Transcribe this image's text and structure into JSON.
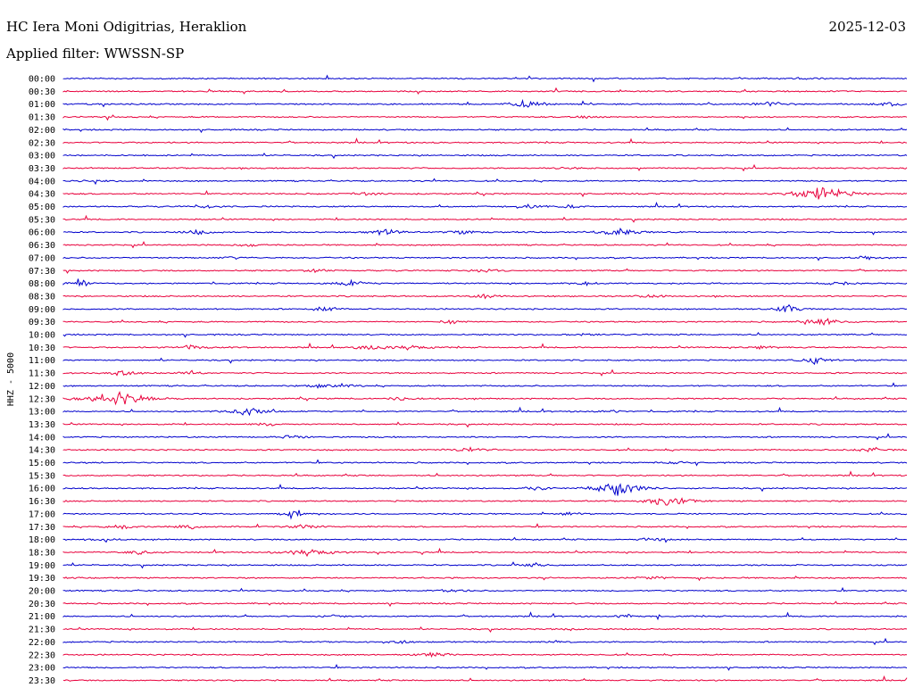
{
  "header": {
    "station": "HC Iera Moni Odigitrias, Heraklion",
    "filter": "Applied filter: WWSSN-SP",
    "date": "2025-12-03"
  },
  "colors": {
    "trace_a": "#0000cc",
    "trace_b": "#e8003c"
  },
  "chart_data": {
    "type": "line",
    "ylabel": "HHZ - 5000",
    "rows": [
      {
        "label": "00:00",
        "events": [
          [
            0.88,
            0.3
          ]
        ]
      },
      {
        "label": "00:30",
        "events": []
      },
      {
        "label": "01:00",
        "events": [
          [
            0.55,
            1.2
          ],
          [
            0.84,
            0.9
          ],
          [
            0.98,
            0.6
          ]
        ]
      },
      {
        "label": "01:30",
        "events": [
          [
            0.62,
            0.4
          ]
        ]
      },
      {
        "label": "02:00",
        "events": []
      },
      {
        "label": "02:30",
        "events": []
      },
      {
        "label": "03:00",
        "events": []
      },
      {
        "label": "03:30",
        "events": [
          [
            0.6,
            0.5
          ]
        ]
      },
      {
        "label": "04:00",
        "events": [
          [
            0.04,
            0.5
          ]
        ]
      },
      {
        "label": "04:30",
        "events": [
          [
            0.36,
            0.6
          ],
          [
            0.9,
            2.4
          ]
        ]
      },
      {
        "label": "05:00",
        "events": [
          [
            0.17,
            0.4
          ],
          [
            0.55,
            0.8
          ],
          [
            0.6,
            0.6
          ]
        ]
      },
      {
        "label": "05:30",
        "events": []
      },
      {
        "label": "06:00",
        "events": [
          [
            0.16,
            0.8
          ],
          [
            0.38,
            1.0
          ],
          [
            0.47,
            0.8
          ],
          [
            0.66,
            1.4
          ]
        ]
      },
      {
        "label": "06:30",
        "events": [
          [
            0.22,
            0.7
          ]
        ]
      },
      {
        "label": "07:00",
        "events": [
          [
            0.2,
            0.4
          ],
          [
            0.95,
            0.5
          ]
        ]
      },
      {
        "label": "07:30",
        "events": [
          [
            0.3,
            0.5
          ],
          [
            0.5,
            0.6
          ]
        ]
      },
      {
        "label": "08:00",
        "events": [
          [
            0.02,
            0.8
          ],
          [
            0.34,
            1.0
          ],
          [
            0.62,
            0.6
          ],
          [
            0.92,
            0.5
          ]
        ]
      },
      {
        "label": "08:30",
        "events": [
          [
            0.5,
            0.6
          ],
          [
            0.7,
            0.6
          ]
        ]
      },
      {
        "label": "09:00",
        "events": [
          [
            0.31,
            0.8
          ],
          [
            0.86,
            0.9
          ]
        ]
      },
      {
        "label": "09:30",
        "events": [
          [
            0.46,
            0.5
          ],
          [
            0.9,
            1.4
          ]
        ]
      },
      {
        "label": "10:00",
        "events": [
          [
            0.62,
            0.4
          ]
        ]
      },
      {
        "label": "10:30",
        "events": [
          [
            0.15,
            0.8
          ],
          [
            0.36,
            1.0
          ],
          [
            0.41,
            1.1
          ],
          [
            0.83,
            0.5
          ]
        ]
      },
      {
        "label": "11:00",
        "events": [
          [
            0.89,
            1.0
          ]
        ]
      },
      {
        "label": "11:30",
        "events": [
          [
            0.07,
            0.8
          ],
          [
            0.15,
            0.5
          ]
        ]
      },
      {
        "label": "12:00",
        "events": [
          [
            0.3,
            0.6
          ],
          [
            0.33,
            0.6
          ]
        ]
      },
      {
        "label": "12:30",
        "events": [
          [
            0.06,
            2.6
          ],
          [
            0.4,
            0.6
          ]
        ]
      },
      {
        "label": "13:00",
        "events": [
          [
            0.22,
            1.5
          ],
          [
            0.65,
            0.4
          ]
        ]
      },
      {
        "label": "13:30",
        "events": [
          [
            0.24,
            0.5
          ]
        ]
      },
      {
        "label": "14:00",
        "events": [
          [
            0.27,
            0.6
          ]
        ]
      },
      {
        "label": "14:30",
        "events": [
          [
            0.48,
            0.9
          ],
          [
            0.96,
            1.0
          ]
        ]
      },
      {
        "label": "15:00",
        "events": [
          [
            0.73,
            0.5
          ]
        ]
      },
      {
        "label": "15:30",
        "events": []
      },
      {
        "label": "16:00",
        "events": [
          [
            0.56,
            0.6
          ],
          [
            0.65,
            1.0
          ],
          [
            0.66,
            2.0
          ]
        ]
      },
      {
        "label": "16:30",
        "events": [
          [
            0.72,
            1.6
          ],
          [
            0.7,
            0.7
          ]
        ]
      },
      {
        "label": "17:00",
        "events": [
          [
            0.27,
            0.7
          ],
          [
            0.6,
            0.5
          ]
        ]
      },
      {
        "label": "17:30",
        "events": [
          [
            0.07,
            0.6
          ],
          [
            0.15,
            0.7
          ],
          [
            0.28,
            0.8
          ]
        ]
      },
      {
        "label": "18:00",
        "events": [
          [
            0.05,
            0.6
          ],
          [
            0.7,
            0.5
          ]
        ]
      },
      {
        "label": "18:30",
        "events": [
          [
            0.09,
            0.7
          ],
          [
            0.29,
            1.6
          ]
        ]
      },
      {
        "label": "19:00",
        "events": [
          [
            0.56,
            0.6
          ]
        ]
      },
      {
        "label": "19:30",
        "events": [
          [
            0.7,
            0.6
          ]
        ]
      },
      {
        "label": "20:00",
        "events": [
          [
            0.46,
            0.6
          ]
        ]
      },
      {
        "label": "20:30",
        "events": []
      },
      {
        "label": "21:00",
        "events": [
          [
            0.32,
            0.4
          ],
          [
            0.67,
            0.6
          ]
        ]
      },
      {
        "label": "21:30",
        "events": [
          [
            0.6,
            0.4
          ]
        ]
      },
      {
        "label": "22:00",
        "events": [
          [
            0.4,
            0.4
          ],
          [
            0.58,
            0.4
          ]
        ]
      },
      {
        "label": "22:30",
        "events": [
          [
            0.44,
            0.8
          ]
        ]
      },
      {
        "label": "23:00",
        "events": []
      },
      {
        "label": "23:30",
        "events": []
      }
    ]
  }
}
